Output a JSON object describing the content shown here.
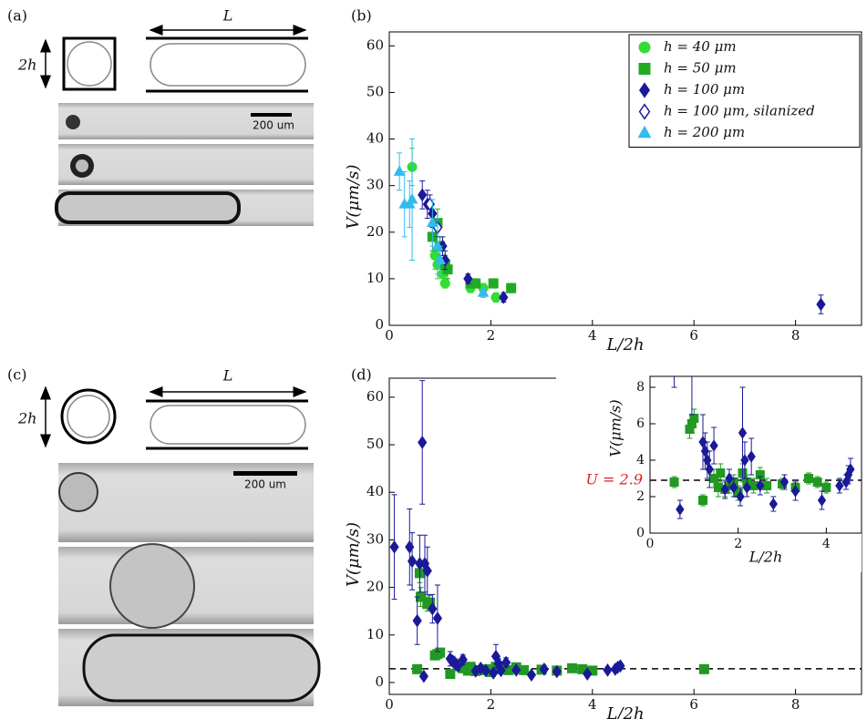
{
  "panel_labels": [
    "(a)",
    "(b)",
    "(c)",
    "(d)"
  ],
  "schematics": [
    {
      "height_label": "2h",
      "length_label": "L",
      "scale_bar": "200 um"
    },
    {
      "height_label": "2h",
      "length_label": "L",
      "scale_bar": "200 um"
    }
  ],
  "chart_data": [
    {
      "type": "scatter",
      "xlabel": "L/2h",
      "ylabel": "V(μm/s)",
      "xlim": [
        0,
        9.3
      ],
      "ylim": [
        0,
        63
      ],
      "xticks": [
        0,
        2,
        4,
        6,
        8
      ],
      "yticks": [
        0,
        10,
        20,
        30,
        40,
        50,
        60
      ],
      "legend": "upper right",
      "series": [
        {
          "name": "h = 40 μm",
          "color": "#33dd33",
          "marker": "circle",
          "x": [
            0.45,
            0.9,
            0.95,
            1.05,
            1.1,
            1.6,
            1.85,
            2.1
          ],
          "values": [
            34,
            15,
            13,
            11,
            9,
            8,
            8,
            6
          ],
          "errors": [
            4,
            3,
            3,
            2,
            1,
            1,
            1,
            1
          ]
        },
        {
          "name": "h = 50 μm",
          "color": "#22aa22",
          "marker": "square",
          "x": [
            0.85,
            0.95,
            1.0,
            1.1,
            1.15,
            1.6,
            1.7,
            2.05,
            2.4
          ],
          "values": [
            19,
            22,
            17,
            13,
            12,
            9,
            9,
            9,
            8
          ],
          "errors": [
            3,
            3,
            2,
            2,
            2,
            1,
            1,
            1,
            1
          ]
        },
        {
          "name": "h = 100 μm",
          "color": "#1a1a99",
          "marker": "diamond",
          "x": [
            0.65,
            0.75,
            0.85,
            1.05,
            1.1,
            1.55,
            2.25,
            8.5
          ],
          "values": [
            28,
            26,
            24,
            17,
            14,
            10,
            6,
            4.5
          ],
          "errors": [
            3,
            3,
            3,
            2,
            2,
            1,
            1,
            2
          ]
        },
        {
          "name": "h = 100 μm, silanized",
          "color": "#1a1a99",
          "marker": "open-diamond",
          "x": [
            0.8,
            0.95
          ],
          "values": [
            26,
            21
          ],
          "errors": [
            2,
            2
          ]
        },
        {
          "name": "h = 200 μm",
          "color": "#33bbee",
          "marker": "triangle",
          "x": [
            0.2,
            0.3,
            0.4,
            0.45,
            0.85,
            0.95,
            1.0,
            1.85
          ],
          "values": [
            33,
            26,
            26,
            27,
            22,
            17,
            14,
            7
          ],
          "errors": [
            4,
            7,
            5,
            13,
            5,
            6,
            3,
            1
          ]
        }
      ]
    },
    {
      "type": "scatter",
      "xlabel": "L/2h",
      "ylabel": "V(μm/s)",
      "xlim": [
        0,
        9.3
      ],
      "ylim": [
        -2.5,
        64
      ],
      "xticks": [
        0,
        2,
        4,
        6,
        8
      ],
      "yticks": [
        0,
        10,
        20,
        30,
        40,
        50,
        60
      ],
      "hline": 2.9,
      "series": [
        {
          "name": "h = 50 μm",
          "color": "#229922",
          "marker": "square",
          "x": [
            0.55,
            0.6,
            0.62,
            0.75,
            0.8,
            0.9,
            0.95,
            1.0,
            1.2,
            1.45,
            1.55,
            1.6,
            1.7,
            1.8,
            1.9,
            2.0,
            2.1,
            2.2,
            2.35,
            2.5,
            2.65,
            3.0,
            3.3,
            3.6,
            3.8,
            4.0,
            6.2
          ],
          "values": [
            2.8,
            23,
            18,
            16.5,
            16.8,
            5.7,
            6,
            6.3,
            1.8,
            3,
            2.5,
            3.3,
            2.4,
            2.6,
            2.8,
            2.2,
            3.3,
            2.8,
            2.6,
            3.2,
            2.6,
            2.7,
            2.5,
            3,
            2.8,
            2.5,
            2.8
          ],
          "errors": [
            0.3,
            2,
            2,
            1.5,
            1.5,
            0.5,
            0.5,
            0.5,
            0.3,
            0.5,
            0.5,
            0.5,
            0.4,
            0.4,
            0.4,
            0.4,
            0.5,
            0.4,
            0.4,
            0.4,
            0.4,
            0.3,
            0.3,
            0.3,
            0.3,
            0.3,
            0.3
          ]
        },
        {
          "name": "h = 100 μm",
          "color": "#1a1a99",
          "marker": "diamond",
          "x": [
            0.1,
            0.4,
            0.45,
            0.55,
            0.6,
            0.65,
            0.68,
            0.7,
            0.75,
            0.85,
            0.95,
            1.2,
            1.25,
            1.3,
            1.35,
            1.45,
            1.7,
            1.8,
            1.9,
            2.05,
            2.1,
            2.15,
            2.2,
            2.3,
            2.5,
            2.8,
            3.05,
            3.3,
            3.9,
            4.3,
            4.45,
            4.5,
            4.55
          ],
          "values": [
            28.5,
            28.5,
            25.5,
            13,
            25,
            50.5,
            1.3,
            25,
            23.5,
            15.5,
            13.5,
            5,
            4.5,
            4,
            3.5,
            4.8,
            2.4,
            3,
            2.5,
            2,
            5.5,
            4,
            2.5,
            4.2,
            2.6,
            1.6,
            2.8,
            2.3,
            1.8,
            2.6,
            2.8,
            3.2,
            3.5
          ],
          "errors": [
            11,
            8,
            6,
            5,
            6,
            13,
            0.5,
            6,
            5,
            3,
            7,
            1.5,
            1,
            1,
            1,
            1,
            0.5,
            0.5,
            0.5,
            0.5,
            2.5,
            1,
            0.5,
            1,
            0.5,
            0.4,
            0.4,
            0.5,
            0.5,
            0.4,
            0.4,
            0.5,
            0.6
          ]
        }
      ],
      "inset": {
        "xlabel": "L/2h",
        "ylabel": "V(μm/s)",
        "xlim": [
          0,
          4.8
        ],
        "ylim": [
          0,
          8.6
        ],
        "xticks": [
          0,
          2,
          4
        ],
        "yticks": [
          0,
          2,
          4,
          6,
          8
        ],
        "annotation": "U = 2.9",
        "annotation_color": "#e02020"
      }
    }
  ]
}
